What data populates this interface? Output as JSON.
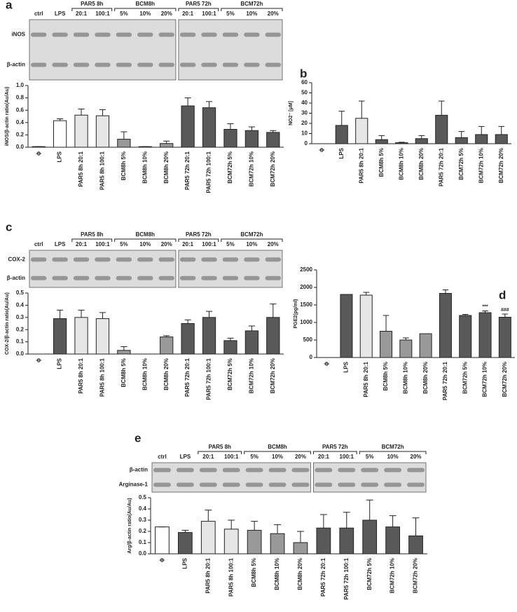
{
  "chart_data": [
    {
      "type": "bar",
      "panel": "a",
      "y_label": "iNOS/β-actin ratio(Au/Au)",
      "blot": {
        "rows": [
          "iNOS",
          "β-actin"
        ],
        "lanes": [
          "ctrl",
          "LPS",
          {
            "group": "PAR5 8h",
            "lanes": [
              "20:1",
              "100:1"
            ]
          },
          {
            "group": "BCM8h",
            "lanes": [
              "5%",
              "10%",
              "20%"
            ]
          },
          {
            "group": "PAR5 72h",
            "lanes": [
              "20:1",
              "100:1"
            ]
          },
          {
            "group": "BCM72h",
            "lanes": [
              "5%",
              "10%",
              "20%"
            ]
          }
        ]
      },
      "categories": [
        "ϕ",
        "LPS",
        "PAR5 8h 20:1",
        "PAR5 8h 100:1",
        "BCM8h 5%",
        "BCM8h 10%",
        "BCM8h 20%",
        "PAR5 72h 20:1",
        "PAR5 72h 100:1",
        "BCM72h 5%",
        "BCM72h 10%",
        "BCM72h 20%"
      ],
      "values": [
        0.01,
        0.43,
        0.52,
        0.51,
        0.13,
        0.01,
        0.06,
        0.67,
        0.64,
        0.29,
        0.27,
        0.24
      ],
      "errors": [
        0,
        0.03,
        0.1,
        0.1,
        0.12,
        0,
        0.04,
        0.13,
        0.1,
        0.09,
        0.06,
        0.03
      ],
      "colors": [
        "#ffffff",
        "#ffffff",
        "#e6e6e6",
        "#e6e6e6",
        "#999999",
        "#999999",
        "#999999",
        "#595959",
        "#595959",
        "#595959",
        "#595959",
        "#595959"
      ],
      "ylim": [
        0,
        1.0
      ],
      "yticks": [
        {
          "value": 0,
          "label": "0.0"
        },
        0.2,
        0.4,
        0.6,
        0.8,
        {
          "value": 1.0,
          "label": "1.0"
        }
      ]
    },
    {
      "type": "bar",
      "panel": "b",
      "y_label": "NO2⁻ [μM]",
      "categories": [
        "ϕ",
        "LPS",
        "PAR5 8h 20:1",
        "BCM8h 5%",
        "BCM8h 10%",
        "BCM8h 20%",
        "PAR5 72h 20:1",
        "BCM72h 5%",
        "BCM72h 10%",
        "BCM72h 20%"
      ],
      "values": [
        0,
        18,
        25,
        4,
        1,
        5,
        28,
        6,
        9,
        9
      ],
      "errors": [
        0,
        14,
        17,
        4,
        0.5,
        3,
        14,
        6,
        8,
        8
      ],
      "colors": [
        "#595959",
        "#595959",
        "#e6e6e6",
        "#595959",
        "#595959",
        "#595959",
        "#595959",
        "#595959",
        "#595959",
        "#595959"
      ],
      "ylim": [
        0,
        60
      ],
      "yticks": [
        0,
        10,
        20,
        30,
        40,
        50,
        60
      ]
    },
    {
      "type": "bar",
      "panel": "c",
      "y_label": "COX-2/β-actin ratio(Au/Au)",
      "blot": {
        "rows": [
          "COX-2",
          "β-actin"
        ],
        "lanes": [
          "ctrl",
          "LPS",
          {
            "group": "PAR5 8h",
            "lanes": [
              "20:1",
              "100:1"
            ]
          },
          {
            "group": "BCM8h",
            "lanes": [
              "5%",
              "10%",
              "20%"
            ]
          },
          {
            "group": "PAR5 72h",
            "lanes": [
              "20:1",
              "100:1"
            ]
          },
          {
            "group": "BCM72h",
            "lanes": [
              "5%",
              "10%",
              "20%"
            ]
          }
        ]
      },
      "categories": [
        "ϕ",
        "LPS",
        "PAR5 8h 20:1",
        "PAR5 8h 100:1",
        "BCM8h 5%",
        "BCM8h 10%",
        "BCM8h 20%",
        "PAR5 72h 20:1",
        "PAR5 72h 100:1",
        "BCM72h 5%",
        "BCM72h 10%",
        "BCM72h 20%"
      ],
      "values": [
        0,
        0.29,
        0.3,
        0.29,
        0.03,
        0,
        0.14,
        0.25,
        0.3,
        0.11,
        0.19,
        0.3
      ],
      "errors": [
        0,
        0.07,
        0.06,
        0.05,
        0.03,
        0,
        0.01,
        0.03,
        0.05,
        0.02,
        0.04,
        0.11
      ],
      "colors": [
        "#ffffff",
        "#595959",
        "#e6e6e6",
        "#e6e6e6",
        "#999999",
        "#999999",
        "#999999",
        "#595959",
        "#595959",
        "#595959",
        "#595959",
        "#595959"
      ],
      "ylim": [
        0,
        0.5
      ],
      "yticks": [
        {
          "value": 0,
          "label": "0.0"
        },
        0.1,
        0.2,
        0.3,
        0.4,
        0.5
      ]
    },
    {
      "type": "bar",
      "panel": "d",
      "y_label": "PGE2(pg/ml)",
      "categories": [
        "ϕ",
        "LPS",
        "PAR5 8h 20:1",
        "BCM8h 5%",
        "BCM8h 10%",
        "BCM8h 20%",
        "PAR5 72h 20:1",
        "BCM72h 5%",
        "BCM72h 10%",
        "BCM72h 20%"
      ],
      "values": [
        0,
        1800,
        1780,
        750,
        500,
        680,
        1830,
        1200,
        1280,
        1150
      ],
      "errors": [
        0,
        0,
        80,
        450,
        60,
        0,
        100,
        30,
        50,
        90
      ],
      "colors": [
        "#595959",
        "#595959",
        "#e6e6e6",
        "#999999",
        "#999999",
        "#999999",
        "#595959",
        "#595959",
        "#595959",
        "#595959"
      ],
      "annotations": [
        {
          "category": "BCM72h 10%",
          "text": "***"
        },
        {
          "category": "BCM72h 20%",
          "text": "###"
        }
      ],
      "ylim": [
        0,
        2500
      ],
      "yticks": [
        0,
        500,
        1000,
        1500,
        2000,
        2500
      ]
    },
    {
      "type": "bar",
      "panel": "e",
      "y_label": "Arg/β-actin ratio(Au/Au)",
      "blot": {
        "rows": [
          "β-actin",
          "Arginase-1"
        ],
        "lanes": [
          "ctrl",
          "LPS",
          {
            "group": "PAR5 8h",
            "lanes": [
              "20:1",
              "100:1"
            ]
          },
          {
            "group": "BCM8h",
            "lanes": [
              "5%",
              "10%",
              "20%"
            ]
          },
          {
            "group": "PAR5 72h",
            "lanes": [
              "20:1",
              "100:1"
            ]
          },
          {
            "group": "BCM72h",
            "lanes": [
              "5%",
              "10%",
              "20%"
            ]
          }
        ]
      },
      "categories": [
        "ϕ",
        "LPS",
        "PAR5 8h 20:1",
        "PAR5 8h 100:1",
        "BCM8h 5%",
        "BCM8h 10%",
        "BCM8h 20%",
        "PAR5 72h 20:1",
        "PAR5 72h 100:1",
        "BCM72h 5%",
        "BCM72h 10%",
        "BCM72h 20%"
      ],
      "values": [
        0.24,
        0.19,
        0.29,
        0.22,
        0.21,
        0.18,
        0.1,
        0.23,
        0.23,
        0.3,
        0.24,
        0.16
      ],
      "errors": [
        0,
        0.02,
        0.1,
        0.08,
        0.08,
        0.08,
        0.1,
        0.12,
        0.14,
        0.18,
        0.1,
        0.16
      ],
      "colors": [
        "#ffffff",
        "#595959",
        "#e6e6e6",
        "#e6e6e6",
        "#999999",
        "#999999",
        "#999999",
        "#595959",
        "#595959",
        "#595959",
        "#595959",
        "#595959"
      ],
      "ylim": [
        0,
        0.5
      ],
      "yticks": [
        {
          "value": 0,
          "label": "0.0"
        },
        0.1,
        0.2,
        0.3,
        0.4,
        0.5
      ]
    }
  ]
}
